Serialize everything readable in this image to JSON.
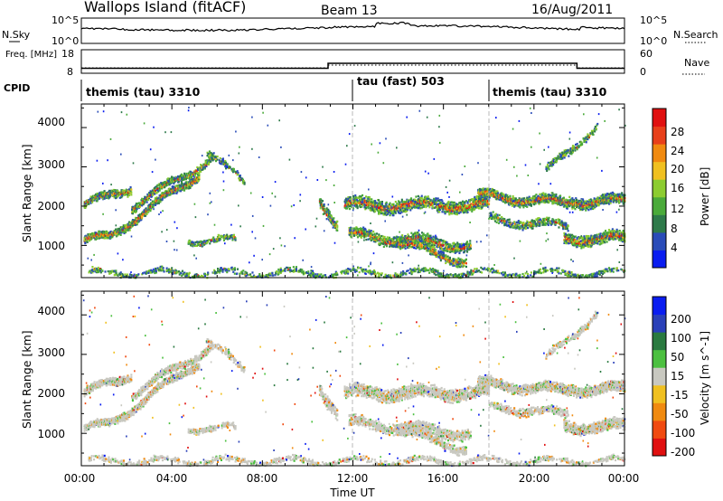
{
  "header": {
    "site": "Wallops Island (fitACF)",
    "beam": "Beam 13",
    "date": "16/Aug/2011"
  },
  "colors": {
    "power": [
      "#0a1df0",
      "#2a4cb8",
      "#2e7a4a",
      "#4aaa3a",
      "#8ccc30",
      "#f0c020",
      "#f08a10",
      "#e8401a",
      "#e01010"
    ],
    "velocity": [
      "#e01010",
      "#f04a10",
      "#f08a10",
      "#f0c020",
      "#c8c8c0",
      "#4cc040",
      "#2a7a40",
      "#2a40b8",
      "#0a1df0"
    ],
    "ground_scatter": "#c8c8c0"
  },
  "chart_data": [
    {
      "type": "line",
      "name": "noise-panel",
      "left_label": "N.Sky",
      "right_label": "N.Search",
      "left_ticks": [
        "10^5",
        "10^0"
      ],
      "right_ticks": [
        "10^5",
        "10^0"
      ]
    },
    {
      "type": "line",
      "name": "frequency-panel",
      "left_label": "Freq. [MHz]",
      "right_label": "Nave",
      "left_ticks": [
        "18",
        "8"
      ],
      "right_ticks": [
        "60",
        "0"
      ],
      "x": [
        0,
        10.9,
        10.9,
        21.9,
        21.9,
        24
      ],
      "freq": [
        10.5,
        10.5,
        12.6,
        12.6,
        10.5,
        10.5
      ]
    },
    {
      "type": "table",
      "name": "cpid-panel",
      "label": "CPID",
      "segments": [
        {
          "start": 0,
          "end": 12,
          "label": "themis (tau) 3310"
        },
        {
          "start": 12,
          "end": 18,
          "label": "tau (fast) 503"
        },
        {
          "start": 18,
          "end": 24,
          "label": "themis (tau) 3310"
        }
      ]
    },
    {
      "type": "heatmap",
      "name": "power-panel",
      "ylabel": "Slant Range [km]",
      "yticks": [
        "1000",
        "2000",
        "3000",
        "4000"
      ],
      "ylim": [
        180,
        4600
      ],
      "colorbar_label": "Power [dB]",
      "colorbar_ticks": [
        "28",
        "24",
        "20",
        "16",
        "12",
        "8",
        "4"
      ]
    },
    {
      "type": "heatmap",
      "name": "velocity-panel",
      "ylabel": "Slant Range [km]",
      "yticks": [
        "1000",
        "2000",
        "3000",
        "4000"
      ],
      "ylim": [
        180,
        4600
      ],
      "colorbar_label": "Velocity [m s^-1]",
      "colorbar_ticks": [
        "200",
        "100",
        "50",
        "15",
        "-15",
        "-50",
        "-100",
        "-200"
      ]
    },
    {
      "type": "axis",
      "name": "time-axis",
      "xlabel": "Time UT",
      "xticks": [
        "00:00",
        "04:00",
        "08:00",
        "12:00",
        "16:00",
        "20:00",
        "00:00"
      ],
      "xlim": [
        0,
        24
      ]
    }
  ]
}
